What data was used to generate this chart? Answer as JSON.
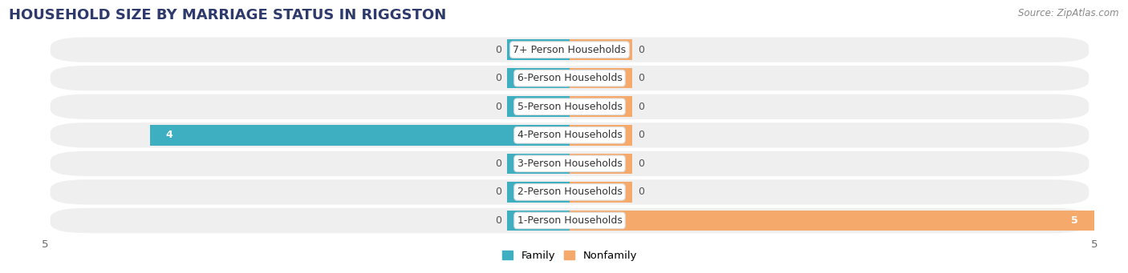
{
  "title": "HOUSEHOLD SIZE BY MARRIAGE STATUS IN RIGGSTON",
  "source": "Source: ZipAtlas.com",
  "categories": [
    "7+ Person Households",
    "6-Person Households",
    "5-Person Households",
    "4-Person Households",
    "3-Person Households",
    "2-Person Households",
    "1-Person Households"
  ],
  "family_values": [
    0,
    0,
    0,
    4,
    0,
    0,
    0
  ],
  "nonfamily_values": [
    0,
    0,
    0,
    0,
    0,
    0,
    5
  ],
  "family_color": "#3EAFC0",
  "nonfamily_color": "#F5A96A",
  "xlim": [
    -5,
    5
  ],
  "bar_row_bg": "#efefef",
  "background_color": "#ffffff",
  "title_fontsize": 13,
  "source_fontsize": 8.5,
  "label_fontsize": 9,
  "value_fontsize": 9,
  "tick_fontsize": 9.5,
  "legend_fontsize": 9.5
}
